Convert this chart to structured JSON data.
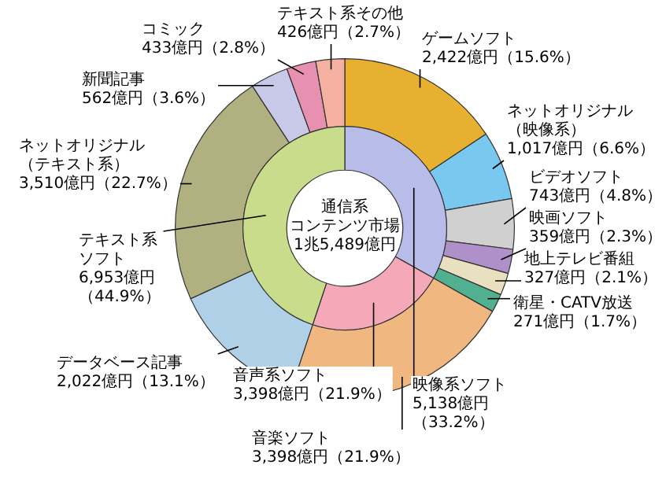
{
  "chart_data": [
    {
      "type": "donut",
      "categories": [
        "ゲームソフト",
        "ネットオリジナル（映像系）",
        "ビデオソフト",
        "映画ソフト",
        "地上テレビ番組",
        "衛星・CATV放送",
        "音楽ソフト",
        "データベース記事",
        "ネットオリジナル（テキスト系）",
        "新聞記事",
        "コミック",
        "テキスト系その他"
      ],
      "values": [
        2422,
        1017,
        743,
        359,
        327,
        271,
        3398,
        2022,
        3510,
        562,
        433,
        426
      ],
      "colors": [
        "#e8b030",
        "#78c8f0",
        "#d0d0d0",
        "#b090c8",
        "#e8e0c0",
        "#50b090",
        "#f0b880",
        "#b0d0e8",
        "#b0b080",
        "#c8c8e8",
        "#e890b0",
        "#f4b0a0"
      ],
      "value_labels": [
        "2,422億円（15.6%）",
        "1,017億円（6.6%）",
        "743億円（4.8%）",
        "359億円（2.3%）",
        "327億円（2.1%）",
        "271億円（1.7%）",
        "3,398億円（21.9%）",
        "2,022億円（13.1%）",
        "3,510億円（22.7%）",
        "562億円（3.6%）",
        "433億円（2.8%）",
        "426億円（2.7%）"
      ]
    },
    {
      "type": "donut",
      "annotations": [
        "通信系コンテンツ市場1兆5,489億円"
      ],
      "categories": [
        "映像系ソフト",
        "音声系ソフト",
        "テキスト系ソフト"
      ],
      "values": [
        5138,
        3398,
        6953
      ],
      "colors": [
        "#b8bce8",
        "#f4a8b8",
        "#c8dc8c"
      ],
      "value_labels": [
        "5,138億円（33.2%）",
        "3,398億円（21.9%）",
        "6,953億円（44.9%）"
      ]
    }
  ]
}
